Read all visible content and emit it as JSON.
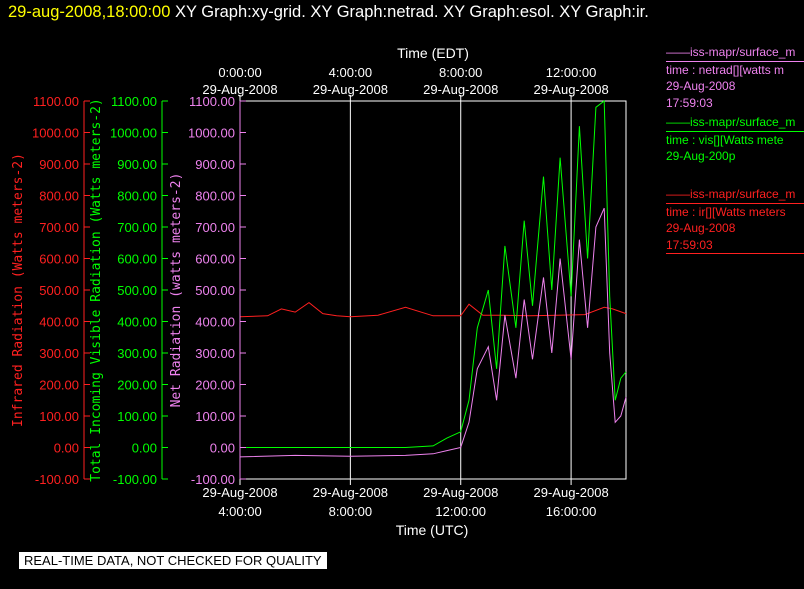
{
  "header": {
    "timestamp": "29-aug-2008,18:00:00",
    "graph_titles": "XY Graph:xy-grid.  XY Graph:netrad.  XY Graph:esol.  XY Graph:ir."
  },
  "legends": {
    "netrad": {
      "title": "iss-mapr/surface_m",
      "line1": "time : netrad[][watts m",
      "line2": "29-Aug-2008",
      "line3": "17:59:03"
    },
    "vis": {
      "title": "iss-mapr/surface_m",
      "line1": "time : vis[][Watts mete",
      "line2": "29-Aug-200p"
    },
    "ir": {
      "title": "iss-mapr/surface_m",
      "line1": "time : ir[][Watts meters",
      "line2": "29-Aug-2008",
      "line3": "17:59:03"
    }
  },
  "notice": "REAL-TIME DATA, NOT CHECKED FOR QUALITY",
  "colors": {
    "ir": "#ff2020",
    "vis": "#00ff00",
    "net": "#ee82ee",
    "axis": "#ffffff"
  },
  "chart_data": {
    "type": "line",
    "top_axis": {
      "title": "Time (EDT)",
      "ticks": [
        {
          "time": "0:00:00",
          "date": "29-Aug-2008"
        },
        {
          "time": "4:00:00",
          "date": "29-Aug-2008"
        },
        {
          "time": "8:00:00",
          "date": "29-Aug-2008"
        },
        {
          "time": "12:00:00",
          "date": "29-Aug-2008"
        }
      ]
    },
    "bottom_axis": {
      "title": "Time (UTC)",
      "ticks": [
        {
          "date": "29-Aug-2008",
          "time": "4:00:00",
          "hour": 4
        },
        {
          "date": "29-Aug-2008",
          "time": "8:00:00",
          "hour": 8
        },
        {
          "date": "29-Aug-2008",
          "time": "12:00:00",
          "hour": 12
        },
        {
          "date": "29-Aug-2008",
          "time": "16:00:00",
          "hour": 16
        }
      ]
    },
    "x_unit": "hours UTC, 29-Aug-2008",
    "xlim": [
      4.0,
      17.99
    ],
    "ylim": [
      -100,
      1100
    ],
    "y_ticks": [
      "1100.00",
      "1000.00",
      "900.00",
      "800.00",
      "700.00",
      "600.00",
      "500.00",
      "400.00",
      "300.00",
      "200.00",
      "100.00",
      "0.00",
      "-100.00"
    ],
    "y_axes": [
      {
        "label": "Infrared Radiation (Watts meters-2)",
        "color": "#ff2020"
      },
      {
        "label": "Total Incoming Visible Radiation (Watts meters-2)",
        "color": "#00ff00"
      },
      {
        "label": "Net Radiation (watts meters-2)",
        "color": "#ee82ee"
      }
    ],
    "grid": true,
    "series": [
      {
        "key": "ir",
        "x": [
          4.0,
          5.0,
          5.5,
          6.0,
          6.5,
          7.0,
          7.5,
          8.0,
          9.0,
          10.0,
          11.0,
          12.0,
          12.3,
          12.8,
          13.5,
          14.5,
          15.5,
          16.5,
          17.2,
          17.5,
          17.99
        ],
        "y": [
          415,
          418,
          440,
          430,
          460,
          425,
          418,
          415,
          420,
          445,
          418,
          418,
          455,
          420,
          420,
          418,
          420,
          422,
          445,
          440,
          425
        ]
      },
      {
        "key": "vis",
        "x": [
          4.0,
          6.0,
          8.0,
          10.0,
          11.0,
          11.5,
          12.0,
          12.3,
          12.6,
          13.0,
          13.3,
          13.6,
          14.0,
          14.3,
          14.6,
          15.0,
          15.3,
          15.6,
          16.0,
          16.3,
          16.6,
          16.9,
          17.2,
          17.4,
          17.6,
          17.8,
          17.99
        ],
        "y": [
          0,
          0,
          0,
          0,
          5,
          30,
          50,
          150,
          380,
          500,
          250,
          640,
          380,
          720,
          450,
          860,
          500,
          920,
          480,
          1020,
          600,
          1080,
          1100,
          480,
          150,
          220,
          240
        ]
      },
      {
        "key": "net",
        "x": [
          4.0,
          6.0,
          8.0,
          10.0,
          11.0,
          11.5,
          12.0,
          12.3,
          12.6,
          13.0,
          13.3,
          13.6,
          14.0,
          14.3,
          14.6,
          15.0,
          15.3,
          15.6,
          16.0,
          16.3,
          16.6,
          16.9,
          17.2,
          17.4,
          17.6,
          17.8,
          17.99
        ],
        "y": [
          -30,
          -25,
          -28,
          -25,
          -20,
          -10,
          0,
          80,
          250,
          320,
          150,
          420,
          220,
          470,
          280,
          540,
          300,
          600,
          280,
          660,
          380,
          700,
          760,
          300,
          80,
          100,
          160
        ]
      }
    ]
  }
}
